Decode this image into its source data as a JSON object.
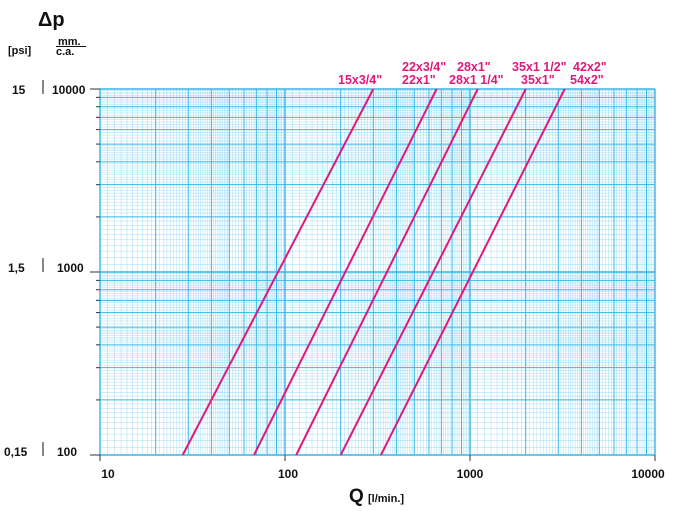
{
  "chart_data": {
    "type": "line",
    "title": "",
    "ylabel_symbol": "Δp",
    "y_unit_psi": "[psi]",
    "y_unit_mm_1": "mm.",
    "y_unit_mm_2": "c.a.",
    "xlabel_main": "Q",
    "xlabel_unit": "[l/min.]",
    "x_scale": "log",
    "y_scale": "log",
    "xlim": [
      10,
      10000
    ],
    "ylim": [
      100,
      10000
    ],
    "x_ticks": [
      "10",
      "100",
      "1000",
      "10000"
    ],
    "y_ticks_mm": [
      "100",
      "1000",
      "10000"
    ],
    "y_ticks_psi": [
      "0,15",
      "1,5",
      "15"
    ],
    "grid": true,
    "line_color": "#e0197d",
    "grid_color": "#35b6e6",
    "series": [
      {
        "name": "15x3/4\"",
        "x": [
          28,
          300
        ],
        "y": [
          100,
          10000
        ]
      },
      {
        "name": "22x3/4\"",
        "x": [
          68,
          660
        ],
        "y": [
          100,
          10000
        ]
      },
      {
        "name": "22x1\"",
        "x": [
          68,
          660
        ],
        "y": [
          100,
          10000
        ]
      },
      {
        "name": "28x1\"",
        "x": [
          115,
          1100
        ],
        "y": [
          100,
          10000
        ]
      },
      {
        "name": "28x1 1/4\"",
        "x": [
          115,
          1100
        ],
        "y": [
          100,
          10000
        ]
      },
      {
        "name": "35x1 1/2\"",
        "x": [
          200,
          2000
        ],
        "y": [
          100,
          10000
        ]
      },
      {
        "name": "35x1\"",
        "x": [
          200,
          2000
        ],
        "y": [
          100,
          10000
        ]
      },
      {
        "name": "42x2\"",
        "x": [
          330,
          3250
        ],
        "y": [
          100,
          10000
        ]
      },
      {
        "name": "54x2\"",
        "x": [
          330,
          3250
        ],
        "y": [
          100,
          10000
        ]
      }
    ],
    "curves": [
      {
        "x": [
          28,
          300
        ],
        "y": [
          100,
          10000
        ]
      },
      {
        "x": [
          68,
          660
        ],
        "y": [
          100,
          10000
        ]
      },
      {
        "x": [
          115,
          1100
        ],
        "y": [
          100,
          10000
        ]
      },
      {
        "x": [
          200,
          2000
        ],
        "y": [
          100,
          10000
        ]
      },
      {
        "x": [
          330,
          3250
        ],
        "y": [
          100,
          10000
        ]
      }
    ]
  }
}
